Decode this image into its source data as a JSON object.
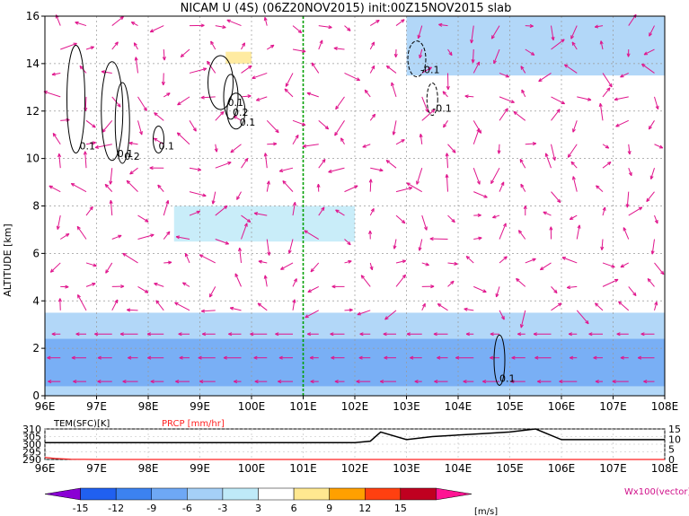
{
  "chart_data": [
    {
      "type": "heatmap",
      "title": "NICAM U (4S) (06Z20NOV2015) init:00Z15NOV2015 slab",
      "xlabel": "",
      "ylabel": "ALTITUDE [km]",
      "xlim": [
        96,
        108
      ],
      "ylim": [
        0,
        16
      ],
      "x_ticks": [
        "96E",
        "97E",
        "98E",
        "99E",
        "100E",
        "101E",
        "102E",
        "103E",
        "104E",
        "105E",
        "106E",
        "107E",
        "108E"
      ],
      "y_ticks": [
        "0",
        "2",
        "4",
        "6",
        "8",
        "10",
        "12",
        "14",
        "16"
      ],
      "grid": true,
      "marker_line_x": 101,
      "colorbar": {
        "levels": [
          "-15",
          "-12",
          "-9",
          "-6",
          "-3",
          "3",
          "6",
          "9",
          "12",
          "15"
        ],
        "unit": "[m/s]",
        "colors": [
          "#8a00d4",
          "#2060f0",
          "#3c82f0",
          "#6ea8f5",
          "#a5d0f7",
          "#bfeaf8",
          "#ffffff",
          "#ffe890",
          "#ffa000",
          "#ff4010",
          "#c00020",
          "#ff1493"
        ]
      },
      "shaded_regions": [
        {
          "x": [
            96,
            108
          ],
          "y": [
            0,
            3.5
          ],
          "value": -4
        },
        {
          "x": [
            96,
            108
          ],
          "y": [
            0.4,
            2.4
          ],
          "value": -8
        },
        {
          "x": [
            98.5,
            100
          ],
          "y": [
            13,
            14.8
          ],
          "value": 5
        },
        {
          "x": [
            99.5,
            100
          ],
          "y": [
            14,
            14.5
          ],
          "value": 8
        },
        {
          "x": [
            106,
            106.8
          ],
          "y": [
            5.9,
            6.4
          ],
          "value": 4
        },
        {
          "x": [
            103,
            108
          ],
          "y": [
            13.5,
            16
          ],
          "value": -6
        },
        {
          "x": [
            98.5,
            102
          ],
          "y": [
            6.5,
            8
          ],
          "value": -3
        }
      ],
      "contour_labels": [
        "0.1",
        "0.1",
        "0.2",
        "0.1",
        "0.2",
        "0.1",
        "0.1",
        "-0.1",
        "-0.1",
        "0.1"
      ],
      "vector_label": "Wx100(vector)"
    },
    {
      "type": "line",
      "title": "",
      "series": [
        {
          "name": "TEM(SFC)[K]",
          "x": [
            96,
            97,
            98,
            99,
            100,
            101,
            102,
            102.3,
            102.5,
            103,
            103.5,
            104,
            104.5,
            105,
            105.5,
            106,
            107,
            108
          ],
          "values": [
            301,
            301,
            301,
            301,
            301,
            301,
            301,
            302,
            308,
            303,
            305,
            306,
            307,
            308,
            310,
            303,
            303,
            303
          ]
        },
        {
          "name": "PRCP [mm/hr]",
          "x": [
            96,
            96.2,
            96.5,
            97,
            108
          ],
          "values": [
            1,
            0.5,
            0.1,
            0,
            0
          ]
        }
      ],
      "xlim": [
        96,
        108
      ],
      "left_axis": {
        "ticks": [
          "310",
          "305",
          "300",
          "295",
          "290"
        ],
        "range": [
          290,
          310
        ]
      },
      "right_axis": {
        "ticks": [
          "15",
          "10",
          "5",
          "0"
        ],
        "range": [
          0,
          15
        ]
      }
    }
  ]
}
